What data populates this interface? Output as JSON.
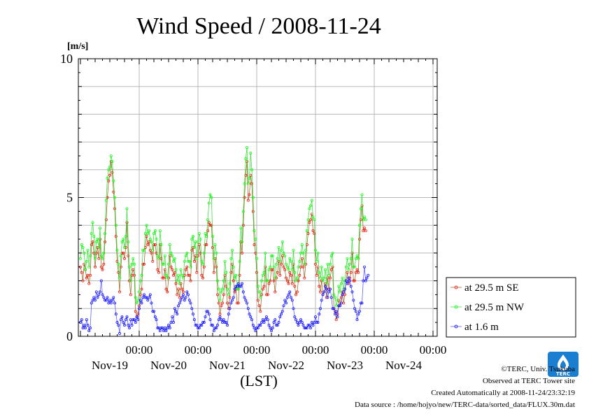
{
  "title": "Wind Speed / 2008-11-24",
  "xlabel": "(LST)",
  "credit": "©TERC, Univ. Tsukuba",
  "observed": "Observed at TERC Tower site",
  "created": "Created Automatically at 2008-11-24/23:32:19",
  "source": "Data source : /home/hojyo/new/TERC-data/sorted_data/FLUX.30m.dat",
  "logo_text": "TERC",
  "chart_data": {
    "type": "line",
    "title": "Wind Speed / 2008-11-24",
    "ylabel": "[m/s]",
    "xlabel": "(LST)",
    "ylim": [
      0,
      10
    ],
    "yticks": [
      "0",
      "5",
      "10"
    ],
    "xlim_days": [
      0,
      6
    ],
    "xticks": [
      {
        "time": "00:00",
        "date": "Nov-19"
      },
      {
        "time": "00:00",
        "date": "Nov-20"
      },
      {
        "time": "00:00",
        "date": "Nov-21"
      },
      {
        "time": "00:00",
        "date": "Nov-22"
      },
      {
        "time": "00:00",
        "date": "Nov-23"
      },
      {
        "time": "00:00",
        "date": "Nov-24"
      }
    ],
    "grid": true,
    "legend_position": "right",
    "interval_hours": 0.5,
    "series": [
      {
        "name": "at 29.5 m SE",
        "color": "#ff0000",
        "line_color": "#a07030",
        "values": [
          2.5,
          2.3,
          2.0,
          2.6,
          2.4,
          2.1,
          2.2,
          1.9,
          2.2,
          3.3,
          3.4,
          3.0,
          2.5,
          3.0,
          3.2,
          2.8,
          3.5,
          2.5,
          2.4,
          2.6,
          3.4,
          4.2,
          5.0,
          5.6,
          5.8,
          6.3,
          5.9,
          5.2,
          4.6,
          3.6,
          2.7,
          2.3,
          1.6,
          2.5,
          3.0,
          3.0,
          2.8,
          3.2,
          4.1,
          2.9,
          2.0,
          1.5,
          2.2,
          2.4,
          2.2,
          0.9,
          0.7,
          0.8,
          1.1,
          1.5,
          1.7,
          2.6,
          2.6,
          3.2,
          3.6,
          3.3,
          3.4,
          3.1,
          3.0,
          2.7,
          3.3,
          3.3,
          3.0,
          2.4,
          2.3,
          3.3,
          2.8,
          2.1,
          2.1,
          2.4,
          1.7,
          1.6,
          2.1,
          2.9,
          2.5,
          2.4,
          2.2,
          2.3,
          1.9,
          1.5,
          1.7,
          1.4,
          1.9,
          1.7,
          1.6,
          2.2,
          2.4,
          2.5,
          2.2,
          2.2,
          2.0,
          3.1,
          3.2,
          2.7,
          2.9,
          2.3,
          2.9,
          3.3,
          3.0,
          2.2,
          2.1,
          2.5,
          3.3,
          3.3,
          3.8,
          4.1,
          4.0,
          4.0,
          3.2,
          2.3,
          2.8,
          2.5,
          1.5,
          1.2,
          0.8,
          1.1,
          1.2,
          1.5,
          2.2,
          1.8,
          1.2,
          1.0,
          1.4,
          2.3,
          2.6,
          2.0,
          1.6,
          1.7,
          1.2,
          1.2,
          2.2,
          3.4,
          3.0,
          4.0,
          5.0,
          5.8,
          6.3,
          4.9,
          5.1,
          5.8,
          5.5,
          4.5,
          3.3,
          3.0,
          2.3,
          1.3,
          1.1,
          0.9,
          1.5,
          1.7,
          1.8,
          2.5,
          1.5,
          1.5,
          1.9,
          2.0,
          2.4,
          2.4,
          2.0,
          1.6,
          2.1,
          2.3,
          2.7,
          2.2,
          2.6,
          2.9,
          2.5,
          2.4,
          2.1,
          2.0,
          1.9,
          2.3,
          2.2,
          1.9,
          2.6,
          1.8,
          1.5,
          1.6,
          2.0,
          2.2,
          2.5,
          2.8,
          2.5,
          2.1,
          2.6,
          3.3,
          3.7,
          4.1,
          4.2,
          4.4,
          3.8,
          3.7,
          2.6,
          2.2,
          2.5,
          1.8,
          1.6,
          2.0,
          1.5,
          1.6,
          1.9,
          1.4,
          2.1,
          1.7,
          2.1,
          2.4,
          2.5,
          1.0,
          0.9,
          0.6,
          0.8,
          1.3,
          1.1,
          1.4,
          1.6,
          1.2,
          1.5,
          2.0,
          2.3,
          1.9,
          2.1,
          2.3,
          3.0,
          2.0,
          2.0,
          2.3,
          2.4,
          2.3,
          3.5,
          4.2,
          4.7,
          3.8,
          3.9,
          3.8
        ]
      },
      {
        "name": "at 29.5 m NW",
        "color": "#00ff00",
        "line_color": "#40e040",
        "values": [
          2.8,
          3.3,
          3.2,
          3.0,
          2.4,
          2.7,
          3.1,
          2.5,
          2.9,
          3.7,
          4.1,
          3.6,
          2.8,
          3.4,
          3.5,
          3.2,
          3.9,
          2.9,
          2.8,
          3.0,
          3.7,
          4.9,
          5.7,
          6.0,
          6.1,
          6.5,
          6.3,
          5.6,
          5.0,
          4.0,
          3.1,
          2.6,
          2.1,
          2.9,
          3.4,
          3.5,
          3.2,
          3.6,
          4.6,
          3.4,
          2.5,
          2.0,
          2.6,
          2.8,
          2.6,
          1.4,
          1.2,
          1.3,
          1.6,
          2.0,
          2.2,
          3.1,
          3.1,
          3.7,
          4.0,
          3.7,
          3.8,
          3.5,
          3.4,
          3.1,
          3.7,
          3.8,
          3.5,
          2.9,
          2.8,
          3.8,
          3.3,
          2.6,
          2.6,
          2.9,
          2.2,
          2.1,
          2.6,
          3.3,
          3.0,
          2.9,
          2.7,
          2.8,
          2.4,
          2.0,
          2.2,
          1.9,
          2.4,
          2.2,
          2.1,
          2.7,
          2.9,
          3.0,
          2.7,
          2.7,
          2.5,
          3.5,
          3.6,
          3.2,
          3.4,
          2.8,
          3.4,
          3.7,
          3.5,
          2.7,
          2.6,
          3.0,
          3.7,
          3.6,
          4.2,
          4.8,
          5.1,
          5.0,
          3.6,
          2.8,
          3.3,
          3.0,
          2.0,
          1.7,
          1.3,
          1.6,
          1.7,
          2.0,
          2.7,
          2.3,
          1.7,
          1.5,
          1.9,
          2.8,
          3.1,
          2.5,
          2.1,
          2.2,
          1.7,
          1.7,
          2.7,
          3.9,
          3.4,
          4.5,
          5.5,
          6.4,
          6.8,
          5.5,
          5.7,
          6.6,
          6.0,
          5.0,
          3.8,
          3.5,
          2.8,
          1.8,
          1.6,
          1.4,
          2.0,
          2.2,
          2.3,
          3.0,
          2.0,
          2.0,
          2.4,
          2.5,
          2.9,
          2.9,
          2.5,
          2.1,
          2.6,
          2.8,
          3.2,
          2.7,
          3.1,
          3.4,
          3.0,
          2.9,
          2.6,
          2.5,
          2.4,
          2.8,
          2.7,
          2.4,
          3.1,
          2.3,
          2.0,
          2.1,
          2.5,
          2.7,
          3.0,
          3.3,
          3.0,
          2.6,
          3.1,
          3.8,
          4.2,
          4.6,
          4.7,
          4.9,
          4.3,
          4.2,
          3.1,
          2.7,
          3.0,
          2.3,
          2.1,
          2.5,
          2.0,
          2.1,
          2.4,
          1.9,
          2.6,
          2.2,
          2.6,
          2.9,
          3.0,
          1.5,
          1.4,
          1.1,
          1.3,
          1.8,
          1.6,
          1.9,
          2.1,
          1.7,
          2.0,
          2.5,
          2.8,
          2.4,
          2.6,
          2.8,
          3.5,
          2.5,
          2.5,
          2.8,
          2.9,
          2.8,
          4.0,
          4.6,
          5.1,
          4.2,
          4.3,
          4.2
        ]
      },
      {
        "name": "at 1.6 m",
        "color": "#0000ff",
        "line_color": "#6060ff",
        "values": [
          0.5,
          0.6,
          0.3,
          0.4,
          0.3,
          0.6,
          0.4,
          0.2,
          0.3,
          1.2,
          1.3,
          1.4,
          1.3,
          1.6,
          1.4,
          1.5,
          1.6,
          2.0,
          1.5,
          1.4,
          1.3,
          1.3,
          1.4,
          1.2,
          1.3,
          1.2,
          1.3,
          1.4,
          1.2,
          0.8,
          0.5,
          0.4,
          0.1,
          0.6,
          0.7,
          0.5,
          0.4,
          0.6,
          0.7,
          0.4,
          0.3,
          0.6,
          0.4,
          0.6,
          0.6,
          0.5,
          0.7,
          0.6,
          1.0,
          1.3,
          1.2,
          1.4,
          1.5,
          1.4,
          1.4,
          1.3,
          1.4,
          1.5,
          1.2,
          0.9,
          0.9,
          0.7,
          0.6,
          0.3,
          0.3,
          0.2,
          0.3,
          0.3,
          0.2,
          0.3,
          0.2,
          0.3,
          0.4,
          0.3,
          0.5,
          0.7,
          0.5,
          1.0,
          0.9,
          0.8,
          1.1,
          1.2,
          1.3,
          1.4,
          1.5,
          1.3,
          1.4,
          1.6,
          1.5,
          1.3,
          1.2,
          1.0,
          0.8,
          0.6,
          0.4,
          0.4,
          0.3,
          0.3,
          0.4,
          0.4,
          0.5,
          0.5,
          0.7,
          0.9,
          0.9,
          0.8,
          0.6,
          0.4,
          0.4,
          0.2,
          0.3,
          0.3,
          0.4,
          0.6,
          0.7,
          0.6,
          0.5,
          0.6,
          0.5,
          0.5,
          0.4,
          0.8,
          1.0,
          1.2,
          1.3,
          1.4,
          1.7,
          1.8,
          1.8,
          1.9,
          1.8,
          1.8,
          1.9,
          1.6,
          1.4,
          1.3,
          1.2,
          1.0,
          0.8,
          0.7,
          0.6,
          0.4,
          0.3,
          0.2,
          0.3,
          0.3,
          0.4,
          0.4,
          0.5,
          0.6,
          0.5,
          0.6,
          0.7,
          0.6,
          0.4,
          0.3,
          0.2,
          0.3,
          0.5,
          0.6,
          0.4,
          0.4,
          0.5,
          0.7,
          0.8,
          0.9,
          1.1,
          1.3,
          1.2,
          1.4,
          1.5,
          1.6,
          1.4,
          1.3,
          1.0,
          0.7,
          0.6,
          0.5,
          0.4,
          0.5,
          0.6,
          0.5,
          0.4,
          0.3,
          0.3,
          0.3,
          0.4,
          0.4,
          0.3,
          0.5,
          0.4,
          0.5,
          0.7,
          0.5,
          0.5,
          0.8,
          1.0,
          1.3,
          1.5,
          1.6,
          1.8,
          1.7,
          1.4,
          1.6,
          1.7,
          1.4,
          1.0,
          1.0,
          0.8,
          0.9,
          0.7,
          1.1,
          1.1,
          1.2,
          1.5,
          1.6,
          1.7,
          2.0,
          1.9,
          2.1,
          2.0,
          1.8,
          1.6,
          1.3,
          1.0,
          0.9,
          0.6,
          0.8,
          0.9,
          1.2,
          1.2,
          2.0,
          2.5,
          2.0,
          2.1,
          2.2
        ]
      }
    ]
  }
}
